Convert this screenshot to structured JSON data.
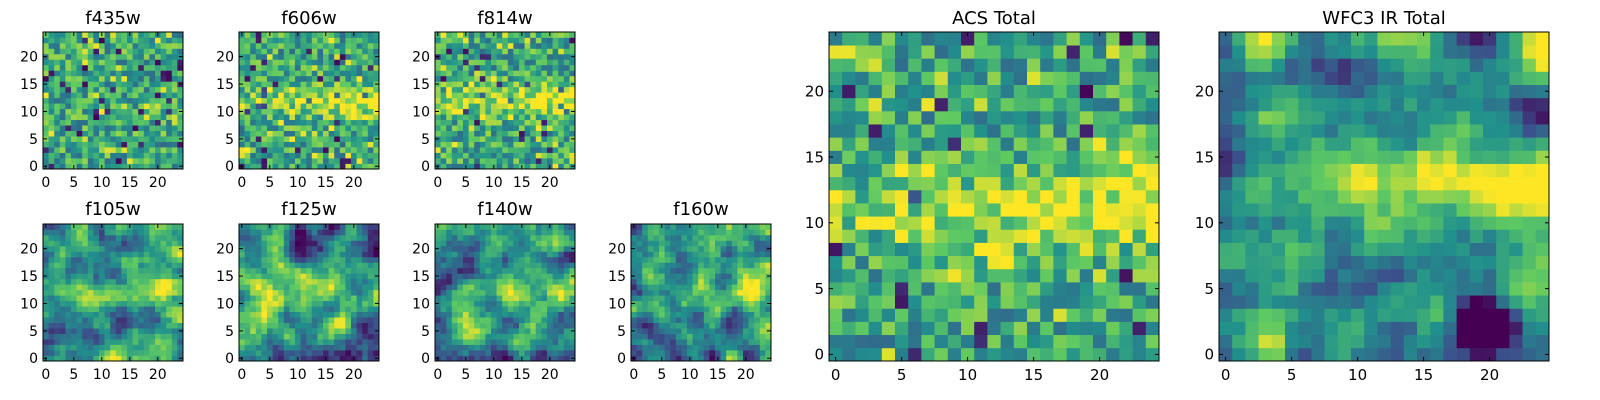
{
  "figure": {
    "description_type": "grid of heatmap panels",
    "colormap": [
      "#440154",
      "#3b528b",
      "#21918c",
      "#5ec962",
      "#fde725"
    ]
  },
  "chart_data": [
    {
      "type": "heatmap",
      "title": "f435w",
      "grid": 25,
      "xlim": [
        -0.5,
        24.5
      ],
      "ylim": [
        -0.5,
        24.5
      ],
      "xticks": [
        "0",
        "5",
        "10",
        "15",
        "20"
      ],
      "yticks": [
        "0",
        "5",
        "10",
        "15",
        "20"
      ],
      "pattern": "noise",
      "seed": 11,
      "band_y": null
    },
    {
      "type": "heatmap",
      "title": "f606w",
      "grid": 25,
      "xlim": [
        -0.5,
        24.5
      ],
      "ylim": [
        -0.5,
        24.5
      ],
      "xticks": [
        "0",
        "5",
        "10",
        "15",
        "20"
      ],
      "yticks": [
        "0",
        "5",
        "10",
        "15",
        "20"
      ],
      "pattern": "noise+band",
      "seed": 23,
      "band_y": 12
    },
    {
      "type": "heatmap",
      "title": "f814w",
      "grid": 25,
      "xlim": [
        -0.5,
        24.5
      ],
      "ylim": [
        -0.5,
        24.5
      ],
      "xticks": [
        "0",
        "5",
        "10",
        "15",
        "20"
      ],
      "yticks": [
        "0",
        "5",
        "10",
        "15",
        "20"
      ],
      "pattern": "noise+band",
      "seed": 37,
      "band_y": 12
    },
    {
      "type": "heatmap",
      "title": "f105w",
      "grid": 25,
      "xlim": [
        -0.5,
        24.5
      ],
      "ylim": [
        -0.5,
        24.5
      ],
      "xticks": [
        "0",
        "5",
        "10",
        "15",
        "20"
      ],
      "yticks": [
        "0",
        "5",
        "10",
        "15",
        "20"
      ],
      "pattern": "smooth+band",
      "seed": 41,
      "band_y": 12
    },
    {
      "type": "heatmap",
      "title": "f125w",
      "grid": 25,
      "xlim": [
        -0.5,
        24.5
      ],
      "ylim": [
        -0.5,
        24.5
      ],
      "xticks": [
        "0",
        "5",
        "10",
        "15",
        "20"
      ],
      "yticks": [
        "0",
        "5",
        "10",
        "15",
        "20"
      ],
      "pattern": "smooth+band",
      "seed": 53,
      "band_y": 12
    },
    {
      "type": "heatmap",
      "title": "f140w",
      "grid": 25,
      "xlim": [
        -0.5,
        24.5
      ],
      "ylim": [
        -0.5,
        24.5
      ],
      "xticks": [
        "0",
        "5",
        "10",
        "15",
        "20"
      ],
      "yticks": [
        "0",
        "5",
        "10",
        "15",
        "20"
      ],
      "pattern": "smooth+band",
      "seed": 67,
      "band_y": 13
    },
    {
      "type": "heatmap",
      "title": "f160w",
      "grid": 25,
      "xlim": [
        -0.5,
        24.5
      ],
      "ylim": [
        -0.5,
        24.5
      ],
      "xticks": [
        "0",
        "5",
        "10",
        "15",
        "20"
      ],
      "yticks": [
        "0",
        "5",
        "10",
        "15",
        "20"
      ],
      "pattern": "smooth+band",
      "seed": 79,
      "band_y": 13
    },
    {
      "type": "heatmap",
      "title": "ACS Total",
      "grid": 25,
      "xlim": [
        -0.5,
        24.5
      ],
      "ylim": [
        -0.5,
        24.5
      ],
      "xticks": [
        "0",
        "5",
        "10",
        "15",
        "20"
      ],
      "yticks": [
        "0",
        "5",
        "10",
        "15",
        "20"
      ],
      "pattern": "noise+band",
      "seed": 97,
      "band_y": 11
    },
    {
      "type": "heatmap",
      "title": "WFC3 IR Total",
      "grid": 25,
      "xlim": [
        -0.5,
        24.5
      ],
      "ylim": [
        -0.5,
        24.5
      ],
      "xticks": [
        "0",
        "5",
        "10",
        "15",
        "20"
      ],
      "yticks": [
        "0",
        "5",
        "10",
        "15",
        "20"
      ],
      "pattern": "smooth+band+blob",
      "seed": 113,
      "band_y": 13
    }
  ]
}
